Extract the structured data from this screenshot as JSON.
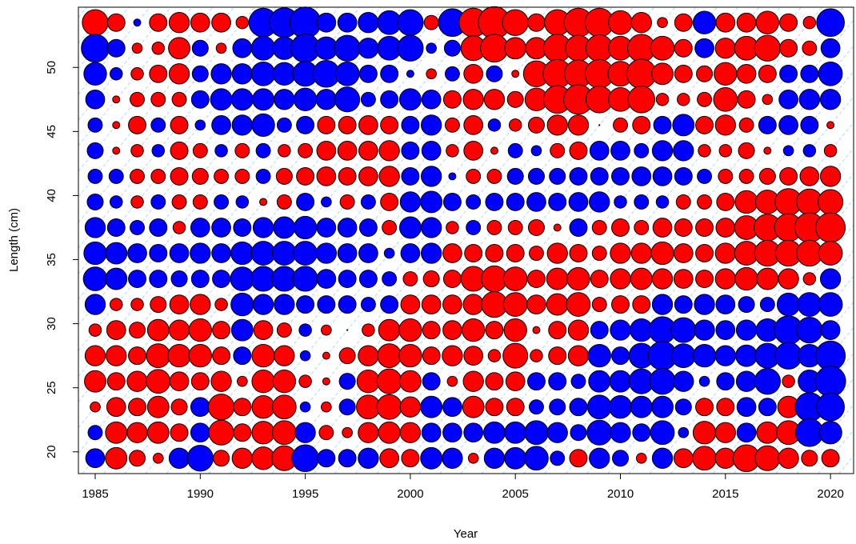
{
  "chart_data": {
    "type": "scatter",
    "subtype": "bubble",
    "title": "",
    "xlabel": "Year",
    "ylabel": "Length (cm)",
    "xlim": [
      1984.2,
      2021.1
    ],
    "ylim": [
      18.3,
      54.7
    ],
    "x_ticks": [
      1985,
      1990,
      1995,
      2000,
      2005,
      2010,
      2015,
      2020
    ],
    "y_ticks": [
      20,
      25,
      30,
      35,
      40,
      45,
      50
    ],
    "years": [
      1985,
      1986,
      1987,
      1988,
      1989,
      1990,
      1991,
      1992,
      1993,
      1994,
      1995,
      1996,
      1997,
      1998,
      1999,
      2000,
      2001,
      2002,
      2003,
      2004,
      2005,
      2006,
      2007,
      2008,
      2009,
      2010,
      2011,
      2012,
      2013,
      2014,
      2015,
      2016,
      2017,
      2018,
      2019,
      2020
    ],
    "lengths": [
      19.5,
      21.5,
      23.5,
      25.5,
      27.5,
      29.5,
      31.5,
      33.5,
      35.5,
      37.5,
      39.5,
      41.5,
      43.5,
      45.5,
      47.5,
      49.5,
      51.5,
      53.5
    ],
    "colors": {
      "positive": "#ff0000",
      "negative": "#0000ff",
      "outline": "#000000",
      "cohort_line": "#87cefa"
    },
    "cohort_lines": "dashed diagonal guides following year classes",
    "grid": false,
    "legend": "none",
    "size_scale_max": 2.2,
    "residual_rows": [
      {
        "length": 53.5,
        "values": [
          1.3,
          0.6,
          -0.1,
          0.6,
          0.8,
          0.7,
          0.7,
          0.3,
          -1.6,
          -1.7,
          -1.9,
          -0.7,
          -0.7,
          -0.8,
          -1.1,
          -1.3,
          0.4,
          -1.5,
          1.6,
          2.0,
          1.3,
          0.6,
          1.3,
          1.6,
          1.6,
          1.1,
          0.8,
          0.2,
          0.6,
          -1.0,
          0.7,
          0.7,
          1.0,
          0.6,
          0.3,
          -1.5
        ]
      },
      {
        "length": 51.5,
        "values": [
          -1.5,
          -0.6,
          0.2,
          0.3,
          0.9,
          -0.5,
          0.2,
          -0.7,
          -1.1,
          -1.0,
          -1.6,
          -1.0,
          -1.3,
          -0.8,
          -1.1,
          -1.3,
          -0.2,
          -0.5,
          1.2,
          1.5,
          0.9,
          0.9,
          1.5,
          1.3,
          1.4,
          1.1,
          1.5,
          1.1,
          0.6,
          -0.7,
          0.8,
          1.1,
          1.3,
          0.6,
          0.4,
          -0.7
        ]
      },
      {
        "length": 49.5,
        "values": [
          -1.0,
          -0.3,
          0.3,
          0.6,
          0.8,
          -0.5,
          -0.8,
          -0.8,
          -1.1,
          -1.0,
          -1.2,
          -1.4,
          -1.1,
          -0.6,
          -0.6,
          -0.1,
          0.2,
          -0.4,
          0.7,
          -0.5,
          0.1,
          1.3,
          1.6,
          1.5,
          1.6,
          1.2,
          1.7,
          0.9,
          0.6,
          0.5,
          1.0,
          0.7,
          0.6,
          -0.6,
          -0.6,
          -1.1
        ]
      },
      {
        "length": 47.5,
        "values": [
          -0.7,
          0.1,
          0.4,
          0.4,
          0.4,
          -0.6,
          -0.9,
          -0.9,
          -0.9,
          -0.8,
          -1.0,
          -0.8,
          -1.2,
          -0.4,
          -0.6,
          -0.9,
          -0.7,
          0.6,
          0.8,
          0.8,
          0.5,
          1.0,
          1.5,
          1.7,
          1.4,
          1.1,
          1.4,
          0.3,
          0.3,
          0.4,
          1.1,
          0.6,
          0.2,
          -0.7,
          -0.8,
          -0.8
        ]
      },
      {
        "length": 45.5,
        "values": [
          -0.4,
          0.1,
          0.6,
          -0.4,
          0.6,
          -0.2,
          -0.7,
          -0.8,
          -1.0,
          -0.4,
          -0.6,
          0.6,
          0.6,
          0.7,
          0.6,
          -0.6,
          -0.8,
          0.4,
          0.7,
          -0.3,
          0.3,
          0.5,
          0.8,
          0.8,
          0.0,
          0.4,
          0.6,
          -0.6,
          -0.9,
          0.6,
          0.8,
          0.4,
          -0.6,
          -0.7,
          -0.6,
          0.1
        ]
      },
      {
        "length": 43.5,
        "values": [
          -0.5,
          0.1,
          0.3,
          -0.3,
          0.6,
          0.4,
          -0.3,
          0.4,
          -0.4,
          0.3,
          0.4,
          0.7,
          0.7,
          0.7,
          0.8,
          -0.6,
          -0.7,
          0.3,
          0.7,
          0.1,
          -0.4,
          -0.2,
          0.4,
          0.6,
          -0.7,
          -0.7,
          -0.4,
          -0.8,
          -0.8,
          0.3,
          0.3,
          0.5,
          0.1,
          -0.2,
          -0.3,
          0.3
        ]
      },
      {
        "length": 41.5,
        "values": [
          -0.4,
          -0.4,
          0.4,
          0.4,
          0.6,
          0.5,
          0.4,
          0.4,
          -0.4,
          0.5,
          0.6,
          0.7,
          0.6,
          0.7,
          0.8,
          -0.6,
          -0.8,
          -0.1,
          0.4,
          0.4,
          -0.5,
          -0.5,
          -0.5,
          -0.6,
          -0.6,
          -0.6,
          -0.7,
          -0.7,
          -0.6,
          -0.4,
          0.4,
          0.4,
          0.5,
          0.6,
          0.7,
          0.8
        ]
      },
      {
        "length": 39.5,
        "values": [
          -0.5,
          -0.3,
          0.3,
          -0.4,
          0.4,
          0.4,
          -0.4,
          -0.3,
          0.1,
          0.4,
          -0.6,
          -0.2,
          0.4,
          -0.4,
          0.6,
          -0.8,
          -0.9,
          -0.6,
          -0.4,
          -0.6,
          -0.6,
          -0.7,
          -0.6,
          -0.7,
          -0.8,
          -0.3,
          -0.4,
          -0.3,
          0.4,
          0.4,
          0.6,
          1.0,
          1.1,
          1.4,
          1.3,
          1.2
        ]
      },
      {
        "length": 37.5,
        "values": [
          -0.8,
          -0.6,
          -0.4,
          -0.6,
          0.3,
          -0.7,
          -0.7,
          -0.6,
          -0.8,
          -0.9,
          -1.0,
          -0.7,
          -0.7,
          -0.6,
          0.4,
          -0.9,
          -0.8,
          0.3,
          -0.4,
          0.4,
          0.4,
          0.5,
          0.1,
          -0.6,
          0.4,
          0.6,
          0.4,
          0.7,
          0.6,
          0.6,
          0.7,
          1.1,
          1.4,
          1.5,
          1.7,
          1.7
        ]
      },
      {
        "length": 35.5,
        "values": [
          -1.0,
          -0.9,
          -0.7,
          -0.6,
          -0.7,
          -0.8,
          -0.7,
          -1.0,
          -1.1,
          -1.1,
          -1.1,
          -0.8,
          -0.7,
          -0.7,
          -0.2,
          -0.7,
          -0.8,
          0.7,
          0.6,
          0.6,
          0.6,
          0.4,
          0.8,
          0.6,
          0.4,
          0.8,
          0.8,
          1.0,
          0.7,
          0.6,
          0.8,
          1.1,
          1.3,
          1.3,
          1.3,
          1.1
        ]
      },
      {
        "length": 33.5,
        "values": [
          -1.1,
          -0.9,
          -0.6,
          -0.6,
          -0.5,
          -0.6,
          -0.6,
          -1.1,
          -1.2,
          -1.2,
          -1.2,
          -0.7,
          -0.6,
          -0.6,
          -0.4,
          0.4,
          0.5,
          0.6,
          1.2,
          1.3,
          1.1,
          0.6,
          0.9,
          1.0,
          0.6,
          0.8,
          0.9,
          0.8,
          0.7,
          0.6,
          0.8,
          1.0,
          0.9,
          0.8,
          0.3,
          -0.8
        ]
      },
      {
        "length": 31.5,
        "values": [
          -0.8,
          0.3,
          0.3,
          0.5,
          0.7,
          0.8,
          0.3,
          -1.0,
          -0.8,
          -0.8,
          -0.6,
          -0.6,
          -0.6,
          -0.4,
          -0.6,
          0.7,
          0.7,
          0.7,
          0.8,
          1.3,
          1.1,
          0.7,
          0.9,
          1.1,
          0.4,
          0.6,
          0.6,
          -0.8,
          -0.6,
          -0.8,
          -0.7,
          -0.5,
          -0.4,
          -1.0,
          -1.1,
          -1.1
        ]
      },
      {
        "length": 29.5,
        "values": [
          0.3,
          0.7,
          0.5,
          0.9,
          0.8,
          1.0,
          0.6,
          -0.9,
          0.7,
          0.4,
          -0.3,
          0.2,
          0.0,
          0.3,
          0.9,
          1.0,
          0.6,
          0.7,
          1.0,
          0.6,
          1.0,
          0.1,
          0.6,
          0.8,
          -0.6,
          -0.8,
          -1.0,
          -1.4,
          -1.2,
          -0.8,
          -0.7,
          -0.8,
          -1.0,
          -1.6,
          -1.3,
          -0.7
        ]
      },
      {
        "length": 27.5,
        "values": [
          0.8,
          0.8,
          0.6,
          1.1,
          1.0,
          1.0,
          0.6,
          -0.6,
          1.0,
          0.8,
          -0.2,
          0.1,
          0.5,
          0.8,
          1.1,
          1.0,
          0.6,
          0.8,
          0.7,
          0.3,
          1.2,
          0.3,
          0.6,
          0.8,
          -1.0,
          -0.6,
          -1.2,
          -1.6,
          -1.1,
          -1.0,
          -0.8,
          -0.9,
          -1.2,
          -1.4,
          -1.0,
          -1.7
        ]
      },
      {
        "length": 25.5,
        "values": [
          0.9,
          0.6,
          0.8,
          1.1,
          0.7,
          0.6,
          0.8,
          0.2,
          1.0,
          1.0,
          0.3,
          0.1,
          -0.5,
          1.0,
          1.2,
          0.9,
          -0.6,
          0.2,
          0.8,
          0.6,
          0.7,
          -0.6,
          -0.6,
          -0.4,
          -0.9,
          -0.9,
          -1.2,
          -1.3,
          -0.8,
          -0.2,
          -0.6,
          -0.8,
          -1.3,
          0.3,
          -1.0,
          -1.8
        ]
      },
      {
        "length": 23.5,
        "values": [
          0.2,
          0.7,
          0.6,
          0.9,
          0.5,
          -0.7,
          1.3,
          0.6,
          1.0,
          1.1,
          -0.2,
          0.2,
          -0.5,
          1.1,
          1.2,
          0.8,
          -0.9,
          -0.7,
          0.9,
          0.6,
          0.6,
          -0.4,
          -0.5,
          -0.6,
          -1.1,
          -1.0,
          -0.9,
          -0.9,
          -0.5,
          0.6,
          0.6,
          -0.7,
          -0.6,
          0.9,
          -1.6,
          -1.5
        ]
      },
      {
        "length": 21.5,
        "values": [
          -0.4,
          0.9,
          0.8,
          0.9,
          0.6,
          -0.7,
          1.2,
          0.6,
          1.0,
          1.1,
          -0.8,
          0.4,
          0.2,
          0.8,
          0.9,
          0.8,
          -0.7,
          -0.7,
          -0.7,
          -0.9,
          -0.9,
          -1.1,
          -0.8,
          -0.5,
          -1.2,
          -0.8,
          -0.6,
          -1.1,
          -0.2,
          1.0,
          0.8,
          -0.7,
          0.9,
          1.1,
          -1.5,
          -1.0
        ]
      },
      {
        "length": 19.5,
        "values": [
          -0.7,
          0.9,
          0.5,
          0.2,
          -0.8,
          -1.3,
          0.5,
          0.8,
          1.0,
          1.2,
          -1.4,
          -0.6,
          -0.6,
          -0.8,
          0.7,
          0.6,
          -0.9,
          -0.8,
          0.2,
          -0.8,
          -0.9,
          -1.1,
          -0.4,
          0.6,
          -0.8,
          -0.5,
          0.2,
          -0.8,
          0.7,
          1.1,
          0.8,
          1.4,
          1.2,
          0.8,
          0.5,
          0.6
        ]
      }
    ]
  }
}
